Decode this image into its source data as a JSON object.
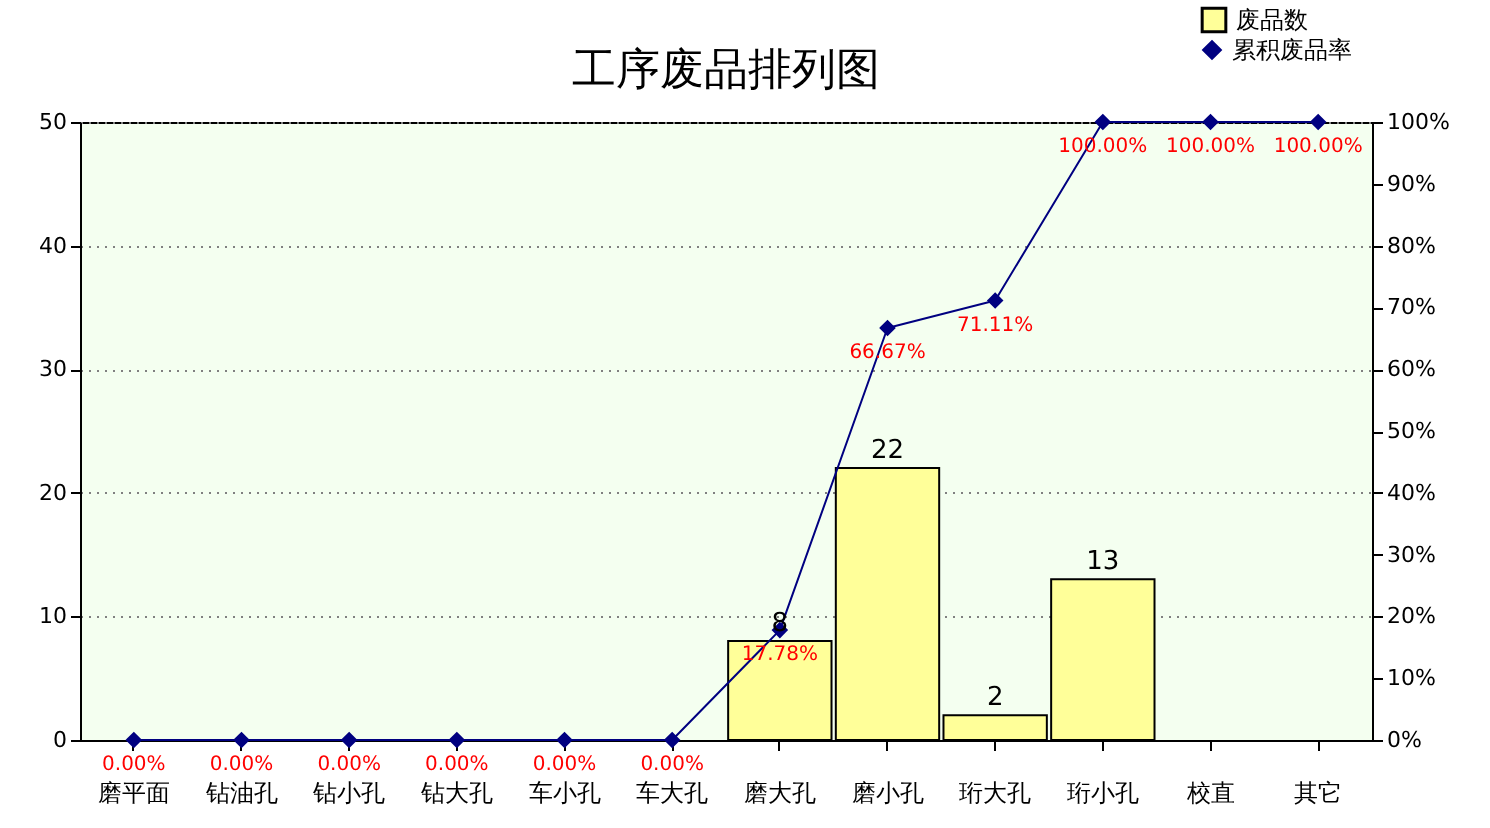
{
  "chart_data": {
    "type": "bar",
    "title": "工序废品排列图",
    "categories": [
      "磨平面",
      "钻油孔",
      "钻小孔",
      "钻大孔",
      "车小孔",
      "车大孔",
      "磨大孔",
      "磨小孔",
      "珩大孔",
      "珩小孔",
      "校直",
      "其它"
    ],
    "series": [
      {
        "name": "废品数",
        "color": "#ffff99",
        "values": [
          0,
          0,
          0,
          0,
          0,
          0,
          8,
          22,
          2,
          13,
          0,
          0
        ],
        "value_labels": [
          null,
          null,
          null,
          null,
          null,
          null,
          "8",
          "22",
          "2",
          "13",
          null,
          null
        ]
      },
      {
        "name": "累积废品率",
        "type": "line",
        "axis": "y2",
        "color": "#000080",
        "marker": "diamond",
        "values": [
          0,
          0,
          0,
          0,
          0,
          0,
          17.78,
          66.67,
          71.11,
          100,
          100,
          100
        ],
        "value_labels": [
          "0.00%",
          "0.00%",
          "0.00%",
          "0.00%",
          "0.00%",
          "0.00%",
          "17.78%",
          "66.67%",
          "71.11%",
          "100.00%",
          "100.00%",
          "100.00%"
        ]
      }
    ],
    "ylim": [
      0,
      50
    ],
    "yticks": [
      0,
      10,
      20,
      30,
      40,
      50
    ],
    "y2lim": [
      0,
      100
    ],
    "y2ticks": [
      {
        "value": 0,
        "label": "0%"
      },
      {
        "value": 10,
        "label": "10%"
      },
      {
        "value": 20,
        "label": "20%"
      },
      {
        "value": 30,
        "label": "30%"
      },
      {
        "value": 40,
        "label": "40%"
      },
      {
        "value": 50,
        "label": "50%"
      },
      {
        "value": 60,
        "label": "60%"
      },
      {
        "value": 70,
        "label": "70%"
      },
      {
        "value": 80,
        "label": "80%"
      },
      {
        "value": 90,
        "label": "90%"
      },
      {
        "value": 100,
        "label": "100%"
      }
    ],
    "grid": "y",
    "legend": "top right"
  }
}
